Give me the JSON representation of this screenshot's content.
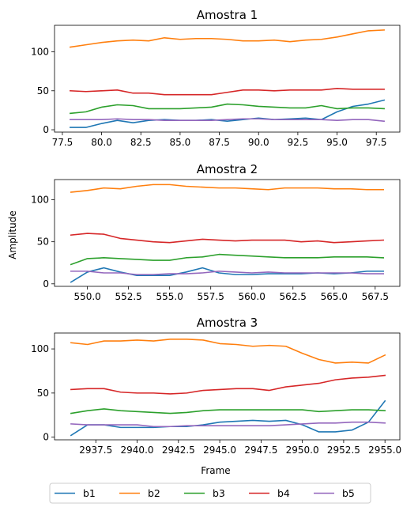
{
  "figure": {
    "ylabel": "Amplitude",
    "xlabel": "Frame"
  },
  "legend": {
    "placement": "bottom-center",
    "items": [
      {
        "label": "b1",
        "color": "#1f77b4"
      },
      {
        "label": "b2",
        "color": "#ff7f0e"
      },
      {
        "label": "b3",
        "color": "#2ca02c"
      },
      {
        "label": "b4",
        "color": "#d62728"
      },
      {
        "label": "b5",
        "color": "#9467bd"
      }
    ]
  },
  "chart_data": [
    {
      "type": "line",
      "title": "Amostra 1",
      "xlim": [
        77,
        99
      ],
      "ylim": [
        -3,
        134
      ],
      "xticks": [
        77.5,
        80.0,
        82.5,
        85.0,
        87.5,
        90.0,
        92.5,
        95.0,
        97.5
      ],
      "xtick_labels": [
        "77.5",
        "80.0",
        "82.5",
        "85.0",
        "87.5",
        "90.0",
        "92.5",
        "95.0",
        "97.5"
      ],
      "yticks": [
        0,
        50,
        100
      ],
      "ytick_labels": [
        "0",
        "50",
        "100"
      ],
      "x": [
        78,
        79,
        80,
        81,
        82,
        83,
        84,
        85,
        86,
        87,
        88,
        89,
        90,
        91,
        92,
        93,
        94,
        95,
        96,
        97,
        98
      ],
      "series": [
        {
          "name": "b1",
          "values": [
            3,
            3,
            8,
            12,
            9,
            12,
            13,
            12,
            12,
            13,
            11,
            13,
            15,
            13,
            14,
            15,
            13,
            23,
            30,
            33,
            38
          ]
        },
        {
          "name": "b2",
          "values": [
            106,
            109,
            112,
            114,
            115,
            114,
            118,
            116,
            117,
            117,
            116,
            114,
            114,
            115,
            113,
            115,
            116,
            119,
            123,
            127,
            128
          ]
        },
        {
          "name": "b3",
          "values": [
            21,
            23,
            29,
            32,
            31,
            27,
            27,
            27,
            28,
            29,
            33,
            32,
            30,
            29,
            28,
            28,
            31,
            27,
            28,
            28,
            27
          ]
        },
        {
          "name": "b4",
          "values": [
            50,
            49,
            50,
            51,
            47,
            47,
            45,
            45,
            45,
            45,
            48,
            51,
            51,
            50,
            51,
            51,
            51,
            53,
            52,
            52,
            52
          ]
        },
        {
          "name": "b5",
          "values": [
            13,
            13,
            13,
            14,
            13,
            13,
            12,
            12,
            12,
            12,
            13,
            14,
            14,
            13,
            13,
            13,
            13,
            12,
            13,
            13,
            11
          ]
        }
      ]
    },
    {
      "type": "line",
      "title": "Amostra 2",
      "xlim": [
        548.0,
        569.0
      ],
      "ylim": [
        -3,
        124
      ],
      "xticks": [
        550.0,
        552.5,
        555.0,
        557.5,
        560.0,
        562.5,
        565.0,
        567.5
      ],
      "xtick_labels": [
        "550.0",
        "552.5",
        "555.0",
        "557.5",
        "560.0",
        "562.5",
        "565.0",
        "567.5"
      ],
      "yticks": [
        0,
        50,
        100
      ],
      "ytick_labels": [
        "0",
        "50",
        "100"
      ],
      "x": [
        549,
        550,
        551,
        552,
        553,
        554,
        555,
        556,
        557,
        558,
        559,
        560,
        561,
        562,
        563,
        564,
        565,
        566,
        567,
        568
      ],
      "series": [
        {
          "name": "b1",
          "values": [
            2,
            14,
            19,
            14,
            10,
            10,
            10,
            14,
            19,
            13,
            11,
            11,
            12,
            12,
            12,
            13,
            12,
            13,
            15,
            15
          ]
        },
        {
          "name": "b2",
          "values": [
            109,
            111,
            114,
            113,
            116,
            118,
            118,
            116,
            115,
            114,
            114,
            113,
            112,
            114,
            114,
            114,
            113,
            113,
            112,
            112
          ]
        },
        {
          "name": "b3",
          "values": [
            23,
            30,
            31,
            30,
            29,
            28,
            28,
            31,
            32,
            35,
            34,
            33,
            32,
            31,
            31,
            31,
            32,
            32,
            32,
            31
          ]
        },
        {
          "name": "b4",
          "values": [
            58,
            60,
            59,
            54,
            52,
            50,
            49,
            51,
            53,
            52,
            51,
            52,
            52,
            52,
            50,
            51,
            49,
            50,
            51,
            52
          ]
        },
        {
          "name": "b5",
          "values": [
            15,
            15,
            13,
            13,
            11,
            11,
            12,
            12,
            13,
            15,
            14,
            13,
            14,
            13,
            13,
            13,
            13,
            13,
            12,
            12
          ]
        }
      ]
    },
    {
      "type": "line",
      "title": "Amostra 3",
      "xlim": [
        2935,
        2955.9
      ],
      "ylim": [
        -3,
        118
      ],
      "xticks": [
        2937.5,
        2940.0,
        2942.5,
        2945.0,
        2947.5,
        2950.0,
        2952.5,
        2955.0
      ],
      "xtick_labels": [
        "2937.5",
        "2940.0",
        "2942.5",
        "2945.0",
        "2947.5",
        "2950.0",
        "2952.5",
        "2955.0"
      ],
      "yticks": [
        0,
        50,
        100
      ],
      "ytick_labels": [
        "0",
        "50",
        "100"
      ],
      "x": [
        2936,
        2937,
        2938,
        2939,
        2940,
        2941,
        2942,
        2943,
        2944,
        2945,
        2946,
        2947,
        2948,
        2949,
        2950,
        2951,
        2952,
        2953,
        2954,
        2955
      ],
      "series": [
        {
          "name": "b1",
          "values": [
            2,
            14,
            14,
            11,
            11,
            11,
            12,
            12,
            14,
            17,
            18,
            19,
            18,
            19,
            14,
            6,
            6,
            8,
            17,
            41
          ]
        },
        {
          "name": "b2",
          "values": [
            107,
            105,
            109,
            109,
            110,
            109,
            111,
            111,
            110,
            106,
            105,
            103,
            104,
            103,
            95,
            88,
            84,
            85,
            84,
            93
          ]
        },
        {
          "name": "b3",
          "values": [
            27,
            30,
            32,
            30,
            29,
            28,
            27,
            28,
            30,
            31,
            31,
            31,
            31,
            31,
            31,
            29,
            30,
            31,
            31,
            30
          ]
        },
        {
          "name": "b4",
          "values": [
            54,
            55,
            55,
            51,
            50,
            50,
            49,
            50,
            53,
            54,
            55,
            55,
            53,
            57,
            59,
            61,
            65,
            67,
            68,
            70
          ]
        },
        {
          "name": "b5",
          "values": [
            15,
            14,
            14,
            14,
            14,
            12,
            12,
            13,
            13,
            13,
            13,
            13,
            13,
            14,
            15,
            16,
            16,
            17,
            17,
            16
          ]
        }
      ]
    }
  ]
}
